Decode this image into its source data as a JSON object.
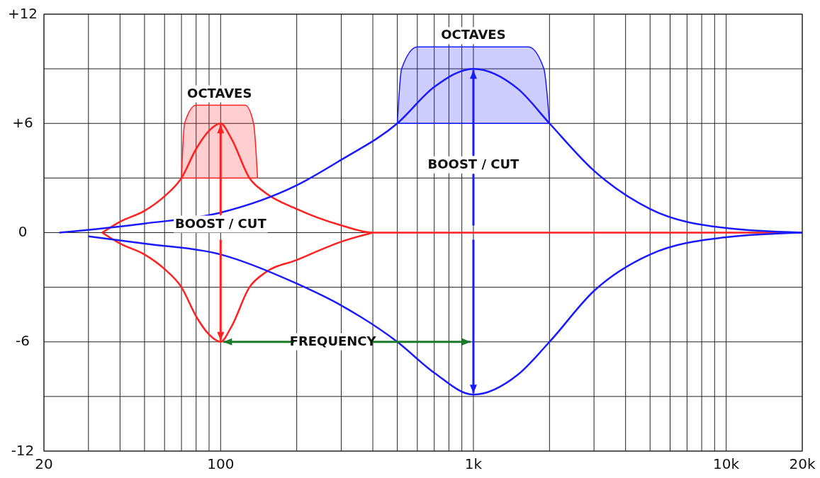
{
  "chart_data": {
    "type": "line",
    "log": "x",
    "grid": true,
    "xlim": [
      20,
      20000
    ],
    "xticks": [
      {
        "value": 20,
        "label": "20"
      },
      {
        "value": 30,
        "label": null
      },
      {
        "value": 40,
        "label": null
      },
      {
        "value": 50,
        "label": null
      },
      {
        "value": 60,
        "label": null
      },
      {
        "value": 70,
        "label": null
      },
      {
        "value": 80,
        "label": null
      },
      {
        "value": 90,
        "label": null
      },
      {
        "value": 100,
        "label": "100"
      },
      {
        "value": 200,
        "label": null
      },
      {
        "value": 300,
        "label": null
      },
      {
        "value": 400,
        "label": null
      },
      {
        "value": 500,
        "label": null
      },
      {
        "value": 600,
        "label": null
      },
      {
        "value": 700,
        "label": null
      },
      {
        "value": 800,
        "label": null
      },
      {
        "value": 900,
        "label": null
      },
      {
        "value": 1000,
        "label": "1k"
      },
      {
        "value": 2000,
        "label": null
      },
      {
        "value": 3000,
        "label": null
      },
      {
        "value": 4000,
        "label": null
      },
      {
        "value": 5000,
        "label": null
      },
      {
        "value": 6000,
        "label": null
      },
      {
        "value": 7000,
        "label": null
      },
      {
        "value": 8000,
        "label": null
      },
      {
        "value": 9000,
        "label": null
      },
      {
        "value": 10000,
        "label": "10k"
      },
      {
        "value": 20000,
        "label": "20k"
      }
    ],
    "ylim": [
      -12,
      12
    ],
    "yticks": [
      {
        "value": -12,
        "label": "-12"
      },
      {
        "value": -9,
        "label": null
      },
      {
        "value": -6,
        "label": "-6"
      },
      {
        "value": -3,
        "label": null
      },
      {
        "value": 0,
        "label": "0"
      },
      {
        "value": 3,
        "label": null
      },
      {
        "value": 6,
        "label": "+6"
      },
      {
        "value": 9,
        "label": null
      },
      {
        "value": 12,
        "label": "+12"
      }
    ],
    "series": [
      {
        "color": "#ff2020",
        "x": [
          34,
          40,
          50,
          60,
          70,
          80,
          90,
          100,
          110,
          130,
          150,
          200,
          300,
          400,
          20000
        ],
        "values": [
          0,
          0.6,
          1.2,
          2,
          3,
          4.6,
          5.6,
          6,
          5.2,
          3,
          2.2,
          1.3,
          0.4,
          0,
          0
        ]
      },
      {
        "color": "#ff2020",
        "x": [
          34,
          40,
          50,
          60,
          70,
          80,
          90,
          100,
          110,
          130,
          150,
          200,
          300,
          400
        ],
        "values": [
          0,
          -0.6,
          -1.2,
          -2,
          -3,
          -4.6,
          -5.6,
          -6,
          -5.2,
          -3,
          -2.2,
          -1.5,
          -0.5,
          0
        ]
      },
      {
        "color": "#1a1aff",
        "x": [
          23,
          50,
          100,
          200,
          300,
          500,
          700,
          1000,
          1500,
          2000,
          3000,
          5000,
          10000,
          20000
        ],
        "values": [
          0,
          0.5,
          1.1,
          2.6,
          4,
          6,
          8,
          9,
          7.9,
          6,
          3.4,
          1.3,
          0.25,
          0
        ]
      },
      {
        "color": "#1a1aff",
        "x": [
          30,
          50,
          100,
          200,
          300,
          500,
          700,
          1000,
          1500,
          2000,
          3000,
          5000,
          10000,
          20000
        ],
        "values": [
          -0.2,
          -0.6,
          -1.2,
          -2.8,
          -4,
          -6,
          -7.7,
          -8.9,
          -7.8,
          -6,
          -3.2,
          -1.2,
          -0.25,
          0
        ]
      },
      {
        "type": "area",
        "color": "#ff2020",
        "x": [
          70,
          72,
          80,
          125,
          135,
          140
        ],
        "values": [
          3,
          6,
          7,
          7,
          6,
          3
        ]
      },
      {
        "type": "area",
        "color": "#1a1aff",
        "x": [
          500,
          520,
          600,
          1650,
          1900,
          2000
        ],
        "values": [
          6,
          9,
          10.2,
          10.2,
          9,
          6
        ]
      }
    ],
    "annotations": [
      "OCTAVES",
      {
        "text": "BOOST / CUT",
        "x": 100,
        "y": 6
      },
      "OCTAVES",
      {
        "text": "BOOST / CUT",
        "x": 1000,
        "y": 9
      },
      "FREQUENCY"
    ]
  }
}
